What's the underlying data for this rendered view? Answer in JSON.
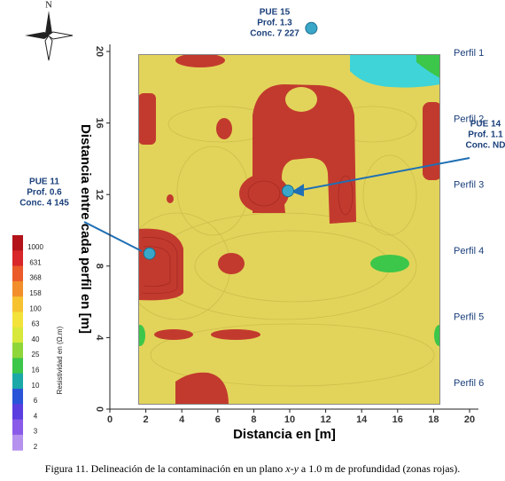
{
  "chart_data": {
    "type": "contour",
    "xlabel": "Distancia en [m]",
    "ylabel": "Distancia entre cada perfil en [m]",
    "xlim": [
      0,
      20
    ],
    "ylim": [
      0,
      20
    ],
    "xticks": [
      0,
      2,
      4,
      6,
      8,
      10,
      12,
      14,
      16,
      18,
      20
    ],
    "yticks": [
      0,
      4,
      8,
      12,
      16,
      20
    ],
    "north": "N",
    "profiles": [
      "Perfil 1",
      "Perfil 2",
      "Perfil 3",
      "Perfil 4",
      "Perfil 5",
      "Perfil 6"
    ],
    "wells": [
      {
        "lines": [
          "PUE 15",
          "Prof. 1.3",
          "Conc. 7 227"
        ],
        "x": 11.2,
        "y": 21.3
      },
      {
        "lines": [
          "PUE 14",
          "Prof. 1.1",
          "Conc. ND"
        ],
        "x": 9.9,
        "y": 12.2
      },
      {
        "lines": [
          "PUE 11",
          "Prof. 0.6",
          "Conc. 4 145"
        ],
        "x": 2.2,
        "y": 8.7
      }
    ],
    "well_color": "#3aa7c9",
    "colorbar": {
      "label": "Resistividad  en (Ω.m)",
      "ticks": [
        1000,
        631,
        368,
        158,
        100,
        63,
        40,
        25,
        16,
        10,
        6,
        4,
        3,
        2
      ],
      "colors": [
        "#b3121a",
        "#d8262a",
        "#ea5a2a",
        "#f28f2c",
        "#f6c230",
        "#f3e23a",
        "#d7e83a",
        "#8fd63a",
        "#3cc64a",
        "#1aa9a8",
        "#2a55d8",
        "#5a3ee0",
        "#8a5ae8",
        "#b592ee"
      ]
    },
    "caption": [
      "Figura 11. Delineación de la contaminación en un plano ",
      "x-y",
      " a 1.0 m de profundidad (zonas rojas)."
    ]
  }
}
